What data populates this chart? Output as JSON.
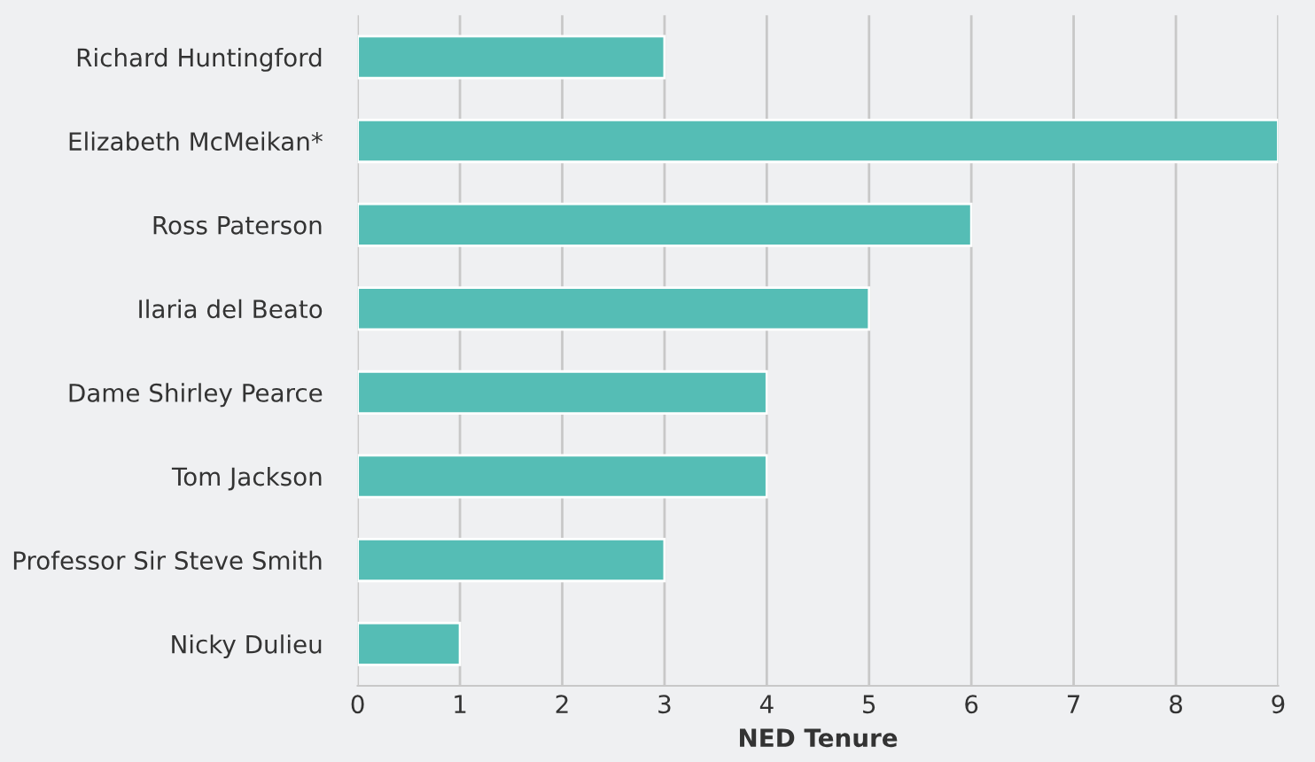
{
  "chart_data": {
    "type": "bar",
    "orientation": "horizontal",
    "xlabel": "NED Tenure",
    "categories": [
      "Richard Huntingford",
      "Elizabeth McMeikan*",
      "Ross Paterson",
      "Ilaria del Beato",
      "Dame Shirley Pearce",
      "Tom Jackson",
      "Professor Sir Steve Smith",
      "Nicky Dulieu"
    ],
    "values": [
      3,
      9,
      6,
      5,
      4,
      4,
      3,
      1
    ],
    "color": "#55bdb5",
    "xlim": [
      0,
      9
    ],
    "xticks": [
      0,
      1,
      2,
      3,
      4,
      5,
      6,
      7,
      8,
      9
    ],
    "grid": "x",
    "legend": false
  }
}
